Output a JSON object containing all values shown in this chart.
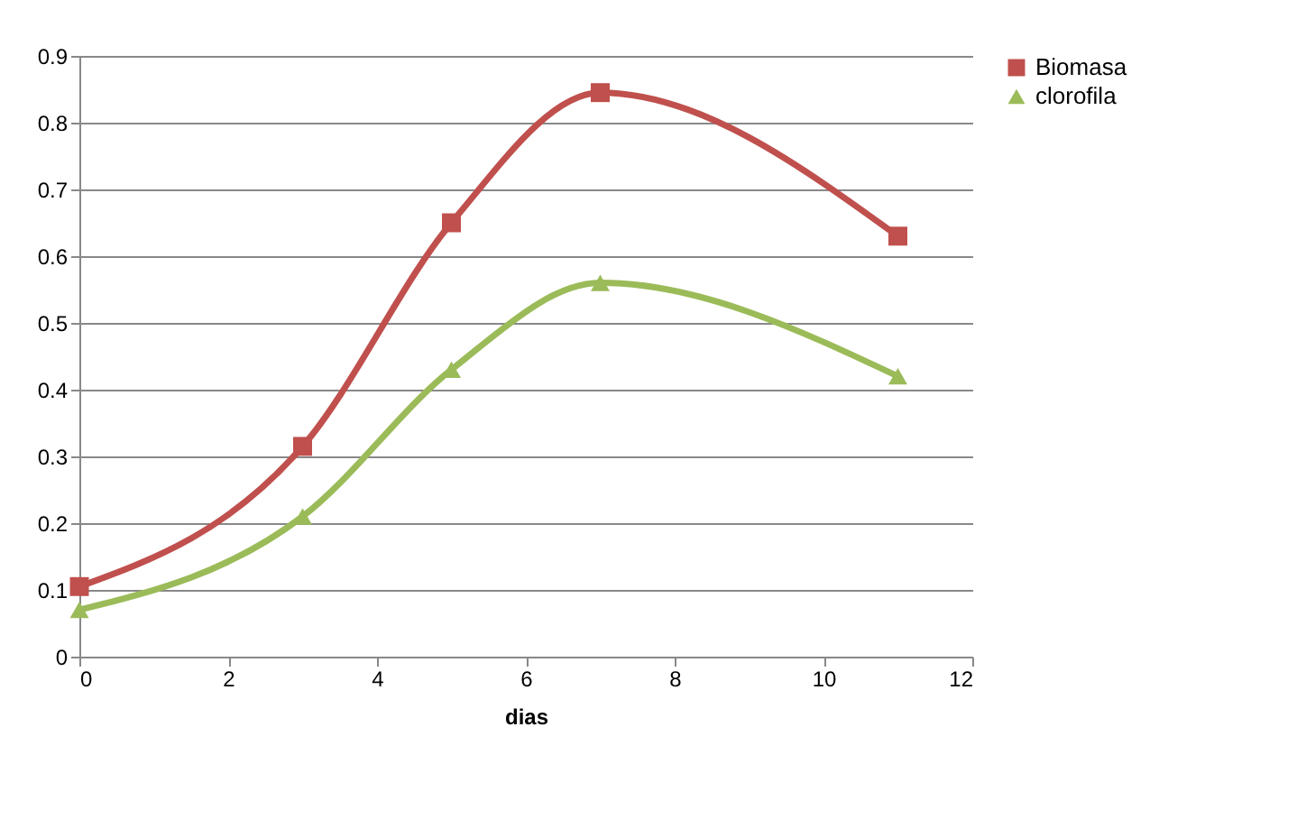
{
  "chart_data": {
    "type": "line",
    "xlabel": "dias",
    "x": [
      0,
      3,
      5,
      7,
      11
    ],
    "series": [
      {
        "name": "Biomasa",
        "color": "#c0504d",
        "marker": "square",
        "values": [
          0.105,
          0.315,
          0.65,
          0.845,
          0.63
        ]
      },
      {
        "name": "clorofila",
        "color": "#9bbb59",
        "marker": "triangle",
        "values": [
          0.07,
          0.21,
          0.43,
          0.56,
          0.42
        ]
      }
    ],
    "xlim": [
      0,
      12
    ],
    "xticks": [
      0,
      2,
      4,
      6,
      8,
      10,
      12
    ],
    "ylim": [
      0,
      0.9
    ],
    "yticks": [
      0,
      0.1,
      0.2,
      0.3,
      0.4,
      0.5,
      0.6,
      0.7,
      0.8,
      0.9
    ],
    "grid": "y",
    "legend": "right",
    "line_style": "solid"
  }
}
